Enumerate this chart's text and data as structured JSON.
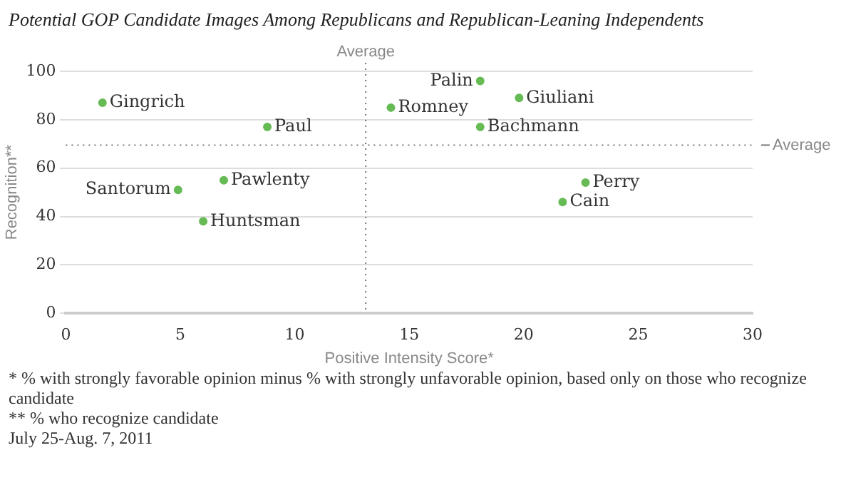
{
  "chart_data": {
    "type": "scatter",
    "title": "Potential GOP Candidate Images Among Republicans and Republican-Leaning Independents",
    "xlabel": "Positive Intensity Score*",
    "ylabel": "Recognition**",
    "x": [
      1.6,
      8.8,
      14.2,
      4.9,
      6.9,
      6.0,
      18.1,
      19.8,
      18.1,
      22.7,
      21.7
    ],
    "values": [
      87,
      77,
      85,
      51,
      55,
      38,
      96,
      89,
      77,
      54,
      46
    ],
    "color": "#66bb55",
    "marker": "circle",
    "xlim": [
      0,
      30
    ],
    "xticks": [
      0,
      5,
      10,
      15,
      20,
      25,
      30
    ],
    "ylim": [
      0,
      100
    ],
    "yticks": [
      0,
      20,
      40,
      60,
      80,
      100
    ],
    "grid": "y",
    "ref_lines": [
      {
        "axis": "x",
        "value": 13.1,
        "label": "Average",
        "line_style": "dotted"
      },
      {
        "axis": "y",
        "value": 69.5,
        "label": "Average",
        "line_style": "dotted"
      }
    ],
    "annotations": [
      {
        "text": "Gingrich",
        "x": 1.6,
        "y": 87
      },
      {
        "text": "Paul",
        "x": 8.8,
        "y": 77
      },
      {
        "text": "Romney",
        "x": 14.2,
        "y": 85
      },
      {
        "text": "Santorum",
        "x": 4.9,
        "y": 51
      },
      {
        "text": "Pawlenty",
        "x": 6.9,
        "y": 55
      },
      {
        "text": "Huntsman",
        "x": 6.0,
        "y": 38
      },
      {
        "text": "Palin",
        "x": 18.1,
        "y": 96
      },
      {
        "text": "Giuliani",
        "x": 19.8,
        "y": 89
      },
      {
        "text": "Bachmann",
        "x": 18.1,
        "y": 77
      },
      {
        "text": "Perry",
        "x": 22.7,
        "y": 54
      },
      {
        "text": "Cain",
        "x": 21.7,
        "y": 46
      },
      "* % with strongly favorable opinion minus % with strongly unfavorable opinion, based only on those who recognize candidate",
      "** % who recognize candidate",
      "July 25-Aug. 7, 2011"
    ]
  }
}
